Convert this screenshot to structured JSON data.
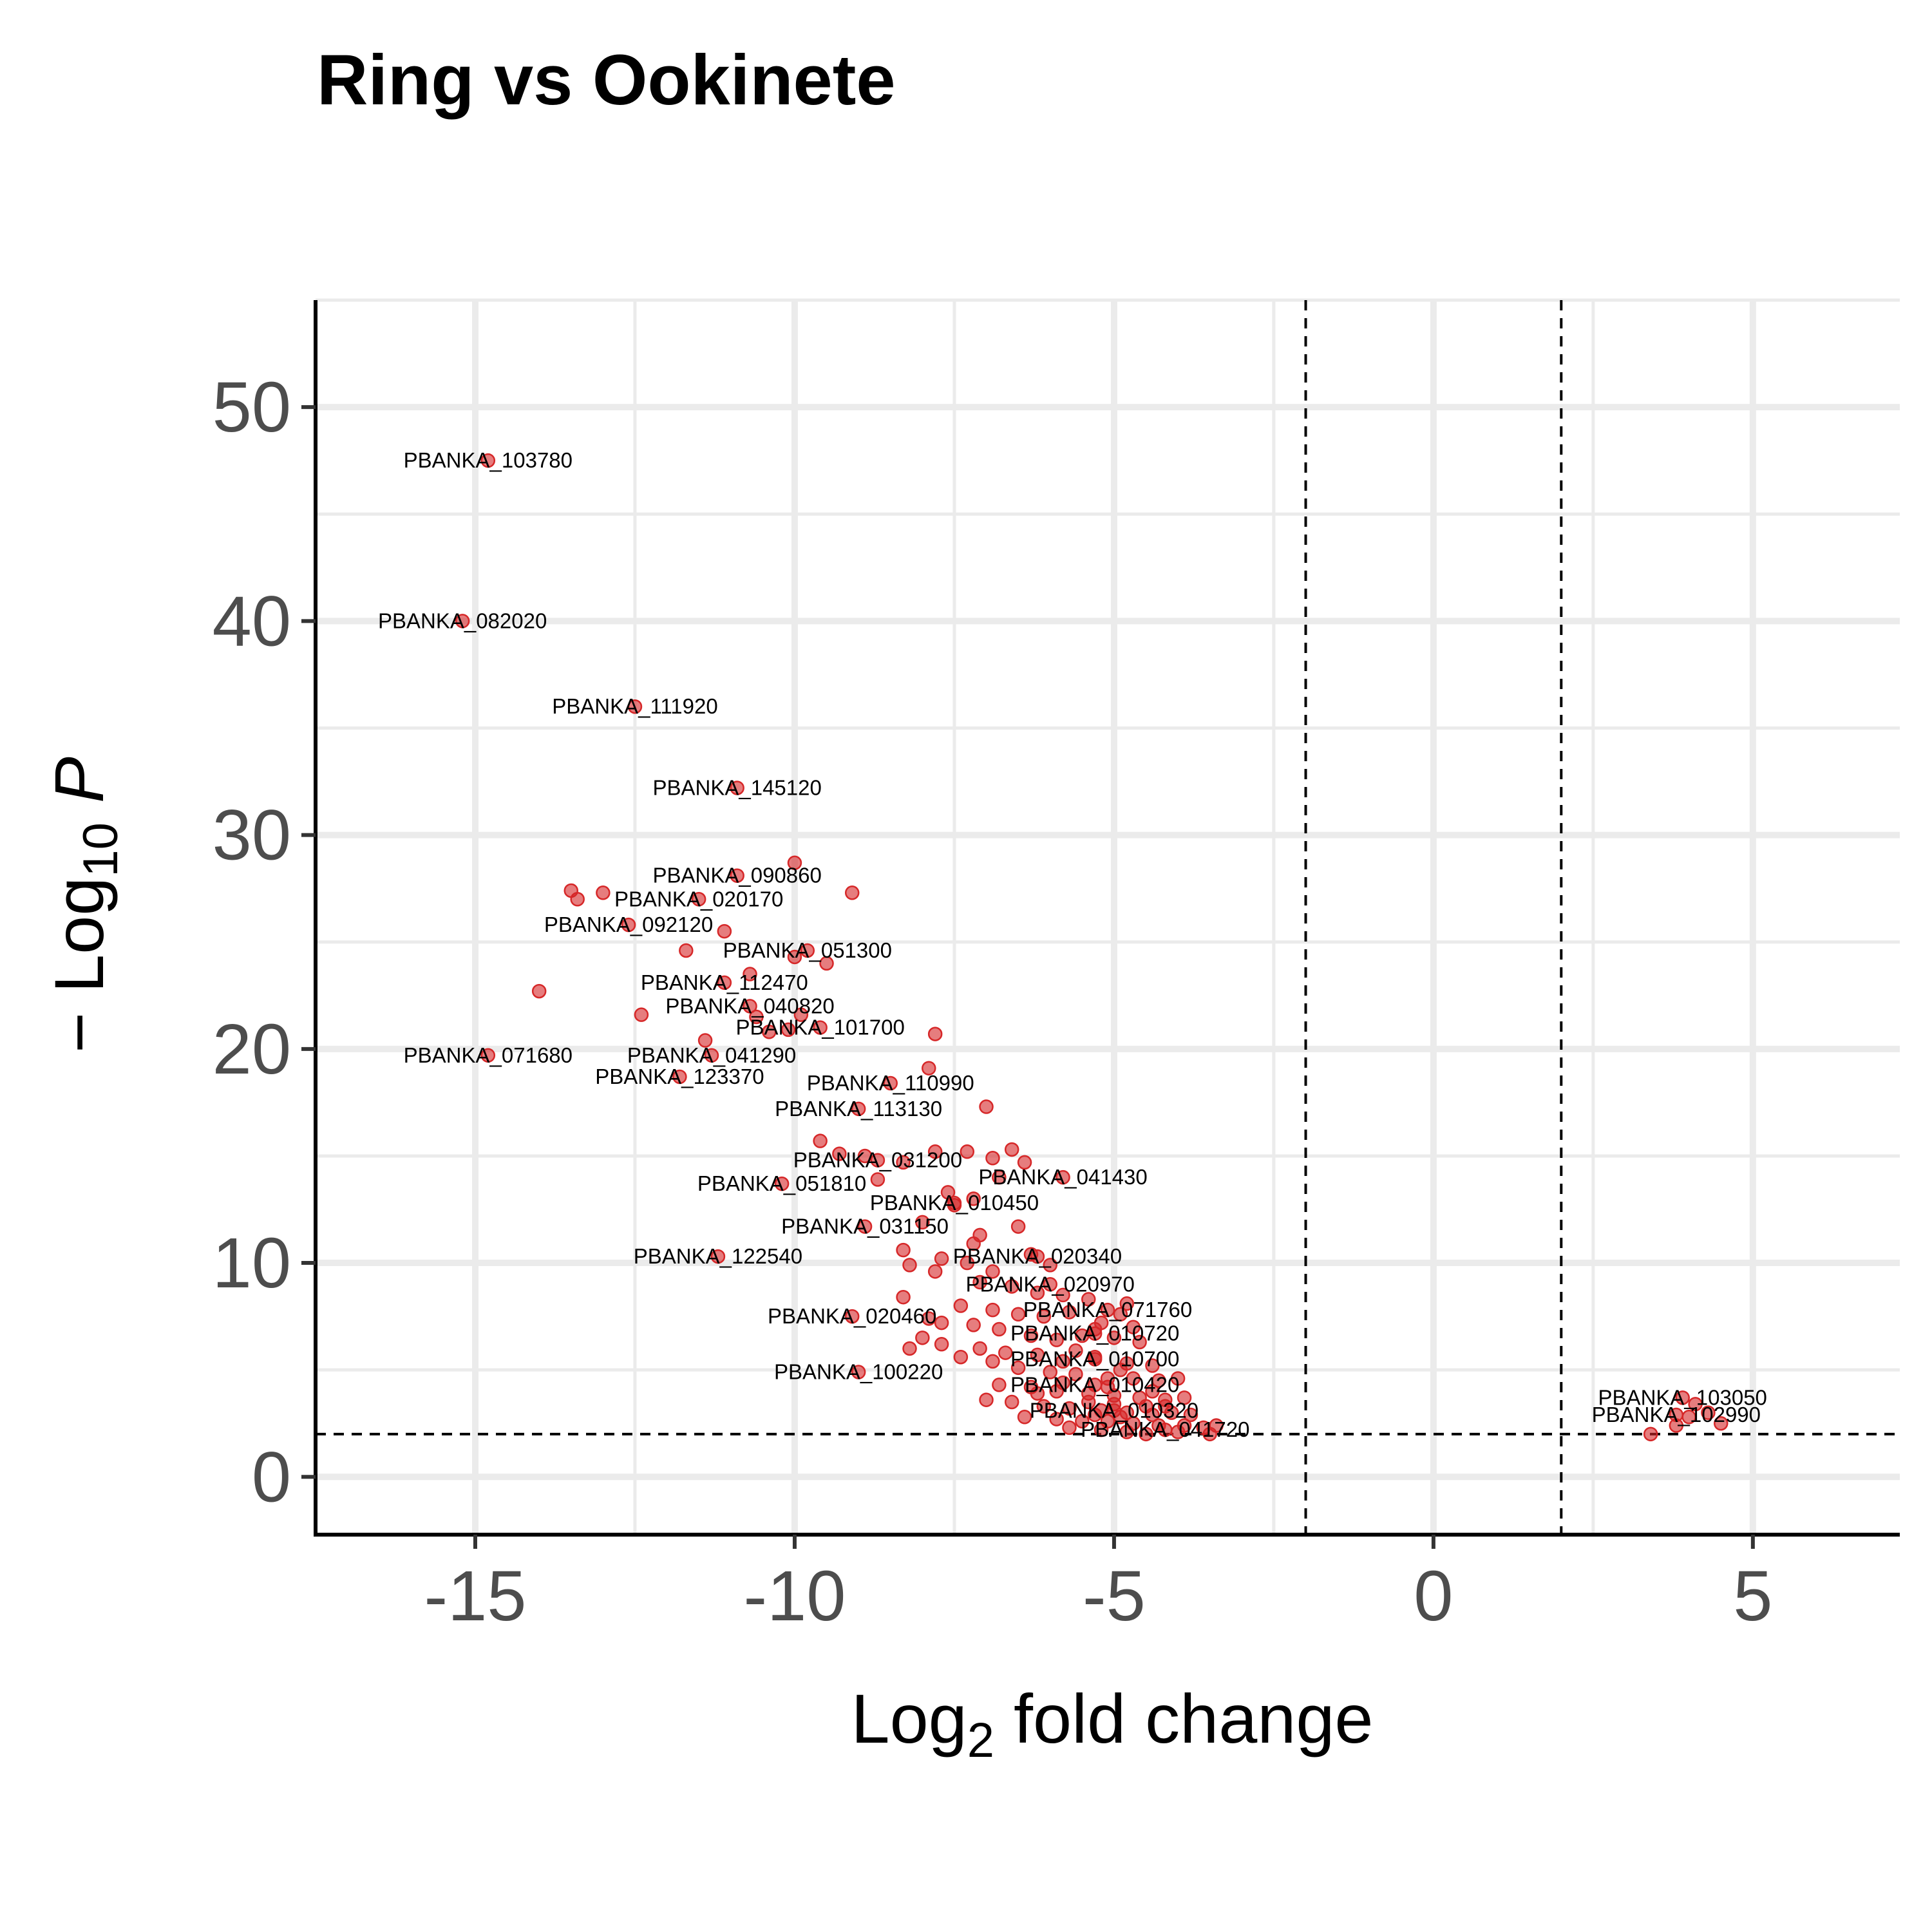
{
  "chart_data": {
    "type": "scatter",
    "title": "Ring vs Ookinete",
    "xlabel": {
      "base": "Log",
      "sub": "2",
      "rest": " fold change"
    },
    "ylabel": {
      "prefix": "− Log",
      "sub": "10",
      "italic": " P"
    },
    "xlim": [
      -17.5,
      7.3
    ],
    "ylim": [
      -2.7,
      55
    ],
    "xticks": [
      -15,
      -10,
      -5,
      0,
      5
    ],
    "xtick_labels": [
      "-15",
      "-10",
      "-5",
      "0",
      "5"
    ],
    "yticks": [
      0,
      10,
      20,
      30,
      40,
      50
    ],
    "ytick_labels": [
      "0",
      "10",
      "20",
      "30",
      "40",
      "50"
    ],
    "grid": true,
    "thresholds": {
      "fold_change": [
        -2,
        2
      ],
      "pvalue_log": 2
    },
    "point_color": "#d62728",
    "labeled_points": [
      {
        "label": "PBANKA_103780",
        "x": -14.8,
        "y": 47.5
      },
      {
        "label": "PBANKA_082020",
        "x": -15.2,
        "y": 40.0
      },
      {
        "label": "PBANKA_111920",
        "x": -12.5,
        "y": 36.0
      },
      {
        "label": "PBANKA_145120",
        "x": -10.9,
        "y": 32.2
      },
      {
        "label": "PBANKA_090860",
        "x": -10.9,
        "y": 28.1
      },
      {
        "label": "PBANKA_020170",
        "x": -11.5,
        "y": 27.0
      },
      {
        "label": "PBANKA_092120",
        "x": -12.6,
        "y": 25.8
      },
      {
        "label": "PBANKA_051300",
        "x": -9.8,
        "y": 24.6
      },
      {
        "label": "PBANKA_112470",
        "x": -11.1,
        "y": 23.1
      },
      {
        "label": "PBANKA_040820",
        "x": -10.7,
        "y": 22.0
      },
      {
        "label": "PBANKA_101700",
        "x": -9.6,
        "y": 21.0
      },
      {
        "label": "PBANKA_071680",
        "x": -14.8,
        "y": 19.7
      },
      {
        "label": "PBANKA_041290",
        "x": -11.3,
        "y": 19.7
      },
      {
        "label": "PBANKA_123370",
        "x": -11.8,
        "y": 18.7
      },
      {
        "label": "PBANKA_110990",
        "x": -8.5,
        "y": 18.4
      },
      {
        "label": "PBANKA_113130",
        "x": -9.0,
        "y": 17.2
      },
      {
        "label": "PBANKA_031200",
        "x": -8.7,
        "y": 14.8
      },
      {
        "label": "PBANKA_051810",
        "x": -10.2,
        "y": 13.7
      },
      {
        "label": "PBANKA_041430",
        "x": -5.8,
        "y": 14.0
      },
      {
        "label": "PBANKA_010450",
        "x": -7.5,
        "y": 12.8
      },
      {
        "label": "PBANKA_031150",
        "x": -8.9,
        "y": 11.7
      },
      {
        "label": "PBANKA_122540",
        "x": -11.2,
        "y": 10.3
      },
      {
        "label": "PBANKA_020340",
        "x": -6.2,
        "y": 10.3
      },
      {
        "label": "PBANKA_020970",
        "x": -6.0,
        "y": 9.0
      },
      {
        "label": "PBANKA_020460",
        "x": -9.1,
        "y": 7.5
      },
      {
        "label": "PBANKA_071760",
        "x": -5.1,
        "y": 7.8
      },
      {
        "label": "PBANKA_010720",
        "x": -5.3,
        "y": 6.7
      },
      {
        "label": "PBANKA_010700",
        "x": -5.3,
        "y": 5.5
      },
      {
        "label": "PBANKA_100220",
        "x": -9.0,
        "y": 4.9
      },
      {
        "label": "PBANKA_010420",
        "x": -5.3,
        "y": 4.3
      },
      {
        "label": "PBANKA_010320",
        "x": -5.0,
        "y": 3.1
      },
      {
        "label": "PBANKA_041720",
        "x": -4.2,
        "y": 2.2
      },
      {
        "label": "PBANKA_103050",
        "x": 3.9,
        "y": 3.7
      },
      {
        "label": "PBANKA_102990",
        "x": 3.8,
        "y": 2.9
      }
    ],
    "other_points": [
      [
        -13.5,
        27.4
      ],
      [
        -13.4,
        27.0
      ],
      [
        -13.0,
        27.3
      ],
      [
        -14.0,
        22.7
      ],
      [
        -12.4,
        21.6
      ],
      [
        -11.4,
        20.4
      ],
      [
        -11.1,
        25.5
      ],
      [
        -11.7,
        24.6
      ],
      [
        -10.0,
        28.7
      ],
      [
        -9.1,
        27.3
      ],
      [
        -10.0,
        24.3
      ],
      [
        -9.5,
        24.0
      ],
      [
        -10.7,
        23.5
      ],
      [
        -10.4,
        20.8
      ],
      [
        -10.1,
        20.9
      ],
      [
        -9.9,
        21.6
      ],
      [
        -7.8,
        20.7
      ],
      [
        -7.9,
        19.1
      ],
      [
        -10.6,
        21.5
      ],
      [
        -7.0,
        17.3
      ],
      [
        -9.6,
        15.7
      ],
      [
        -9.3,
        15.1
      ],
      [
        -8.9,
        15.0
      ],
      [
        -8.3,
        14.7
      ],
      [
        -7.8,
        15.2
      ],
      [
        -7.3,
        15.2
      ],
      [
        -6.9,
        14.9
      ],
      [
        -6.6,
        15.3
      ],
      [
        -6.4,
        14.7
      ],
      [
        -8.7,
        13.9
      ],
      [
        -7.6,
        13.3
      ],
      [
        -7.2,
        13.0
      ],
      [
        -6.8,
        14.0
      ],
      [
        -7.5,
        12.7
      ],
      [
        -7.1,
        11.3
      ],
      [
        -6.5,
        11.7
      ],
      [
        -8.0,
        11.9
      ],
      [
        -7.2,
        10.9
      ],
      [
        -8.3,
        10.6
      ],
      [
        -6.3,
        10.4
      ],
      [
        -7.7,
        10.2
      ],
      [
        -7.3,
        10.0
      ],
      [
        -8.2,
        9.9
      ],
      [
        -6.9,
        9.6
      ],
      [
        -6.0,
        9.9
      ],
      [
        -7.8,
        9.6
      ],
      [
        -7.1,
        9.1
      ],
      [
        -6.6,
        8.9
      ],
      [
        -6.2,
        8.6
      ],
      [
        -5.8,
        8.5
      ],
      [
        -5.4,
        8.3
      ],
      [
        -4.8,
        8.1
      ],
      [
        -8.3,
        8.4
      ],
      [
        -7.4,
        8.0
      ],
      [
        -6.9,
        7.8
      ],
      [
        -6.5,
        7.6
      ],
      [
        -6.1,
        7.5
      ],
      [
        -5.7,
        7.7
      ],
      [
        -5.2,
        7.2
      ],
      [
        -4.7,
        7.0
      ],
      [
        -7.9,
        7.4
      ],
      [
        -7.7,
        7.2
      ],
      [
        -7.2,
        7.1
      ],
      [
        -6.8,
        6.9
      ],
      [
        -6.3,
        6.6
      ],
      [
        -5.9,
        6.4
      ],
      [
        -5.5,
        6.6
      ],
      [
        -5.0,
        6.5
      ],
      [
        -4.6,
        6.3
      ],
      [
        -8.0,
        6.5
      ],
      [
        -7.7,
        6.2
      ],
      [
        -7.1,
        6.0
      ],
      [
        -6.7,
        5.8
      ],
      [
        -6.2,
        5.7
      ],
      [
        -5.8,
        5.4
      ],
      [
        -5.3,
        5.6
      ],
      [
        -4.8,
        5.3
      ],
      [
        -4.4,
        5.2
      ],
      [
        -8.2,
        6.0
      ],
      [
        -7.4,
        5.6
      ],
      [
        -6.9,
        5.4
      ],
      [
        -6.5,
        5.1
      ],
      [
        -6.0,
        4.9
      ],
      [
        -5.6,
        4.8
      ],
      [
        -5.1,
        4.6
      ],
      [
        -4.7,
        4.6
      ],
      [
        -4.3,
        4.5
      ],
      [
        -4.0,
        4.6
      ],
      [
        -6.8,
        4.3
      ],
      [
        -6.3,
        4.2
      ],
      [
        -5.9,
        4.0
      ],
      [
        -5.4,
        3.9
      ],
      [
        -5.0,
        3.8
      ],
      [
        -4.6,
        3.7
      ],
      [
        -4.2,
        3.6
      ],
      [
        -3.9,
        3.7
      ],
      [
        -7.0,
        3.6
      ],
      [
        -6.6,
        3.5
      ],
      [
        -6.1,
        3.3
      ],
      [
        -5.7,
        3.2
      ],
      [
        -5.2,
        3.1
      ],
      [
        -4.8,
        3.0
      ],
      [
        -4.4,
        2.9
      ],
      [
        -4.1,
        3.0
      ],
      [
        -3.8,
        2.9
      ],
      [
        -6.4,
        2.8
      ],
      [
        -5.9,
        2.7
      ],
      [
        -5.5,
        2.6
      ],
      [
        -5.1,
        2.6
      ],
      [
        -4.7,
        2.5
      ],
      [
        -4.3,
        2.4
      ],
      [
        -3.9,
        2.4
      ],
      [
        -3.6,
        2.3
      ],
      [
        -3.4,
        2.4
      ],
      [
        -5.7,
        2.3
      ],
      [
        -5.2,
        2.2
      ],
      [
        -4.8,
        2.1
      ],
      [
        -4.5,
        2.0
      ],
      [
        -4.0,
        2.1
      ],
      [
        -3.5,
        2.0
      ],
      [
        -5.4,
        3.5
      ],
      [
        -5.1,
        4.2
      ],
      [
        -4.9,
        5.0
      ],
      [
        -5.6,
        5.9
      ],
      [
        -5.3,
        6.9
      ],
      [
        -4.9,
        7.6
      ],
      [
        -5.0,
        3.4
      ],
      [
        -4.5,
        3.3
      ],
      [
        -4.9,
        2.8
      ],
      [
        -5.3,
        2.9
      ],
      [
        -6.2,
        3.9
      ],
      [
        -5.8,
        4.4
      ],
      [
        -4.4,
        4.0
      ],
      [
        -4.2,
        3.3
      ],
      [
        3.4,
        2.0
      ],
      [
        4.1,
        3.4
      ],
      [
        4.3,
        3.0
      ],
      [
        4.5,
        2.5
      ],
      [
        3.8,
        2.4
      ],
      [
        4.0,
        2.8
      ]
    ]
  }
}
